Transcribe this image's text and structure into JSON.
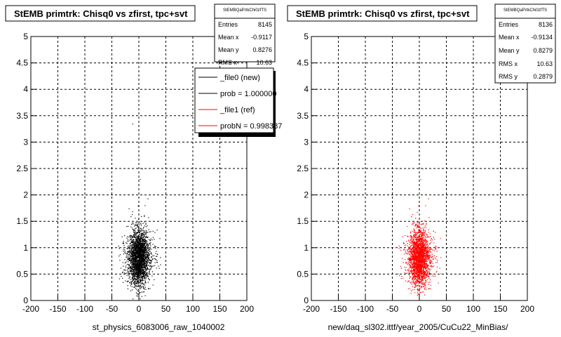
{
  "colors": {
    "series_new": "#000000",
    "series_ref": "#ff0000",
    "grid": "#000000",
    "background": "#ffffff"
  },
  "chart_data": [
    {
      "type": "scatter",
      "title": "StEMB primtrk: Chisq0 vs zfirst, tpc+svt",
      "xlabel": "st_physics_6083006_raw_1040002",
      "xlim": [
        -200,
        200
      ],
      "ylim": [
        0,
        5
      ],
      "x_ticks": [
        -200,
        -150,
        -100,
        -50,
        0,
        50,
        100,
        150,
        200
      ],
      "y_ticks": [
        0,
        0.5,
        1,
        1.5,
        2,
        2.5,
        3,
        3.5,
        4,
        4.5,
        5
      ],
      "x_tick_labels": [
        "-200",
        "-150",
        "-100",
        "-50",
        "0",
        "50",
        "100",
        "150",
        "200"
      ],
      "y_tick_labels": [
        "0",
        "0.5",
        "1",
        "1.5",
        "2",
        "2.5",
        "3",
        "3.5",
        "4",
        "4.5",
        "5"
      ],
      "grid": true,
      "color": "#000000",
      "stats": {
        "name": "StEMBQaPrtkChi0zfTS",
        "rows": [
          {
            "label": "Entries",
            "value": "8145"
          },
          {
            "label": "Mean x",
            "value": "-0.9117"
          },
          {
            "label": "Mean y",
            "value": "0.8276"
          },
          {
            "label": "RMS x",
            "value": "10.63"
          }
        ]
      },
      "legend": {
        "placement": "top-right",
        "entries": [
          {
            "label": "_file0 (new)",
            "color": "#000000"
          },
          {
            "label": "prob = 1.000000",
            "color": "#000000"
          },
          {
            "label": "_file1 (ref)",
            "color": "#ff0000"
          },
          {
            "label": "probN = 0.998387",
            "color": "#ff0000"
          }
        ]
      },
      "series": [
        {
          "points": [
            [
              -18,
              0.35
            ],
            [
              -10,
              0.5
            ],
            [
              -5,
              0.62
            ],
            [
              0,
              0.75
            ],
            [
              4,
              0.82
            ],
            [
              8,
              0.95
            ],
            [
              12,
              1.1
            ],
            [
              16,
              1.3
            ],
            [
              -14,
              1.45
            ],
            [
              -2,
              1.8
            ],
            [
              2,
              2.3
            ],
            [
              6,
              2.5
            ],
            [
              -12,
              3.35
            ],
            [
              20,
              0.6
            ],
            [
              25,
              0.8
            ],
            [
              -25,
              0.9
            ],
            [
              30,
              1.0
            ],
            [
              -30,
              1.1
            ]
          ]
        }
      ]
    },
    {
      "type": "scatter",
      "title": "StEMB primtrk: Chisq0 vs zfirst, tpc+svt",
      "xlabel": "new/daq_sl302.ittf/year_2005/CuCu22_MinBias/",
      "xlim": [
        -200,
        200
      ],
      "ylim": [
        0,
        5
      ],
      "x_ticks": [
        -200,
        -150,
        -100,
        -50,
        0,
        50,
        100,
        150,
        200
      ],
      "y_ticks": [
        0,
        0.5,
        1,
        1.5,
        2,
        2.5,
        3,
        3.5,
        4,
        4.5,
        5
      ],
      "x_tick_labels": [
        "-200",
        "-150",
        "-100",
        "-50",
        "0",
        "50",
        "100",
        "150",
        "200"
      ],
      "y_tick_labels": [
        "0",
        "0.5",
        "1",
        "1.5",
        "2",
        "2.5",
        "3",
        "3.5",
        "4",
        "4.5",
        "5"
      ],
      "grid": true,
      "color": "#ff0000",
      "stats": {
        "name": "StEMBQaPrtkChi0zfTS",
        "rows": [
          {
            "label": "Entries",
            "value": "8136"
          },
          {
            "label": "Mean x",
            "value": "-0.9134"
          },
          {
            "label": "Mean y",
            "value": "0.8279"
          },
          {
            "label": "RMS x",
            "value": "10.63"
          },
          {
            "label": "RMS y",
            "value": "0.2879"
          }
        ]
      },
      "series": [
        {
          "points": [
            [
              -18,
              0.35
            ],
            [
              -10,
              0.5
            ],
            [
              -5,
              0.62
            ],
            [
              0,
              0.75
            ],
            [
              4,
              0.82
            ],
            [
              8,
              0.95
            ],
            [
              12,
              1.1
            ],
            [
              16,
              1.3
            ],
            [
              -14,
              1.45
            ],
            [
              -2,
              1.8
            ],
            [
              2,
              2.3
            ],
            [
              6,
              2.5
            ],
            [
              20,
              0.6
            ],
            [
              25,
              0.8
            ],
            [
              -25,
              0.9
            ],
            [
              30,
              1.0
            ],
            [
              -30,
              1.1
            ]
          ]
        }
      ]
    }
  ]
}
